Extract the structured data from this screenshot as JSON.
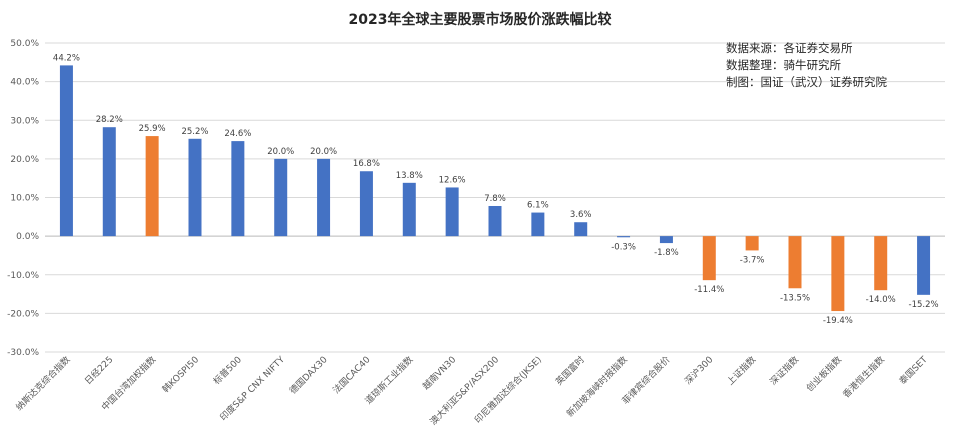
{
  "chart_data": {
    "type": "bar",
    "title": "2023年全球主要股票市场股价涨跌幅比较",
    "source_lines": [
      "数据来源：各证券交易所",
      "数据整理：骑牛研究所",
      "制图：国证（武汉）证券研究院"
    ],
    "ylim": [
      -30,
      50
    ],
    "yticks": [
      "50.0%",
      "40.0%",
      "30.0%",
      "20.0%",
      "10.0%",
      "0.0%",
      "-10.0%",
      "-20.0%",
      "-30.0%"
    ],
    "ytick_values": [
      50,
      40,
      30,
      20,
      10,
      0,
      -10,
      -20,
      -30
    ],
    "grid": true,
    "categories": [
      "纳斯达克综合指数",
      "日经225",
      "中国台湾加权指数",
      "韩KOSPI50",
      "标普500",
      "印度S&P CNX NIFTY",
      "德国DAX30",
      "法国CAC40",
      "道琼斯工业指数",
      "越南VN30",
      "澳大利亚S&P/ASX200",
      "印尼雅加达综合(JKSE)",
      "英国富时",
      "新加坡海峡时报指数",
      "菲律宾综合股价",
      "深沪300",
      "上证指数",
      "深证指数",
      "创业板指数",
      "香港恒生指数",
      "泰国SET"
    ],
    "values": [
      44.2,
      28.2,
      25.9,
      25.2,
      24.6,
      20.0,
      20.0,
      16.8,
      13.8,
      12.6,
      7.8,
      6.1,
      3.6,
      -0.3,
      -1.8,
      -11.4,
      -3.7,
      -13.5,
      -19.4,
      -14.0,
      -15.2
    ],
    "value_labels": [
      "44.2%",
      "28.2%",
      "25.9%",
      "25.2%",
      "24.6%",
      "20.0%",
      "20.0%",
      "16.8%",
      "13.8%",
      "12.6%",
      "7.8%",
      "6.1%",
      "3.6%",
      "-0.3%",
      "-1.8%",
      "-11.4%",
      "-3.7%",
      "-13.5%",
      "-19.4%",
      "-14.0%",
      "-15.2%"
    ],
    "bar_colors": [
      "#4472c4",
      "#4472c4",
      "#ed7d31",
      "#4472c4",
      "#4472c4",
      "#4472c4",
      "#4472c4",
      "#4472c4",
      "#4472c4",
      "#4472c4",
      "#4472c4",
      "#4472c4",
      "#4472c4",
      "#4472c4",
      "#4472c4",
      "#ed7d31",
      "#ed7d31",
      "#ed7d31",
      "#ed7d31",
      "#ed7d31",
      "#4472c4"
    ]
  }
}
